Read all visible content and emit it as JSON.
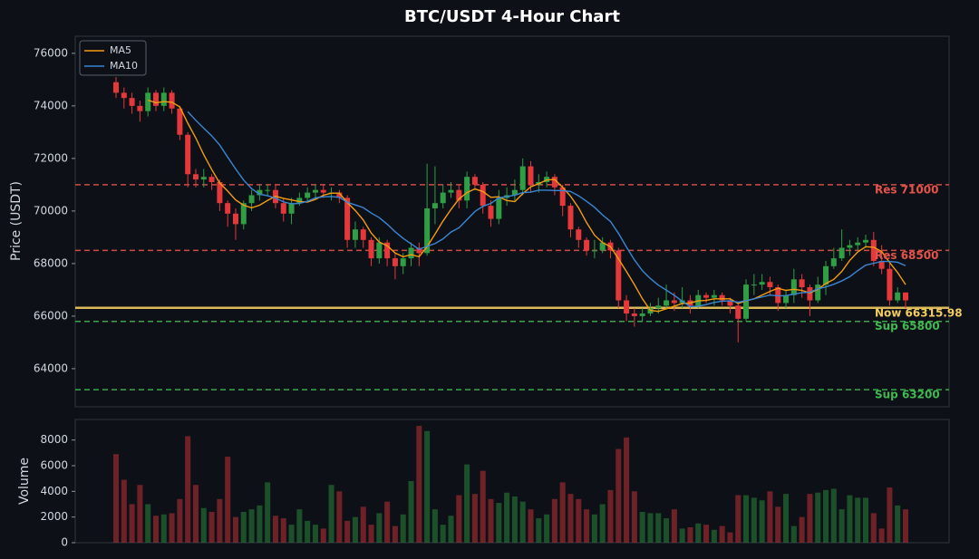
{
  "chart_data": {
    "type": "candlestick",
    "title": "BTC/USDT 4-Hour Chart",
    "ylabel": "Price (USDT)",
    "categories": [
      null,
      null,
      null,
      null,
      null,
      null,
      null,
      null,
      null,
      null,
      null,
      null,
      null,
      null,
      null,
      null,
      null,
      null,
      null,
      null,
      null,
      null,
      null,
      null,
      null,
      null,
      null,
      null,
      null,
      null,
      null,
      null,
      null,
      null,
      null,
      null,
      null,
      null,
      null,
      null,
      null,
      null,
      null,
      null,
      null,
      null,
      null,
      null,
      null,
      null,
      null,
      null,
      null,
      null,
      null,
      null,
      null,
      null,
      null,
      null,
      null,
      null,
      null,
      null,
      null,
      null,
      null,
      null,
      null,
      null,
      null,
      null,
      null,
      null,
      null,
      null,
      null,
      null,
      null,
      null,
      null,
      null,
      null,
      null,
      null,
      null,
      null,
      null,
      null,
      null,
      null,
      null,
      null,
      null,
      null,
      null,
      null,
      null,
      null,
      null
    ],
    "open": [
      74900,
      74500,
      74300,
      74000,
      73800,
      74500,
      74000,
      74500,
      73900,
      72900,
      71400,
      71200,
      71300,
      71100,
      70300,
      69900,
      69500,
      70300,
      70600,
      70800,
      70800,
      70300,
      69900,
      70300,
      70500,
      70700,
      70800,
      70700,
      70700,
      70500,
      68900,
      69300,
      68900,
      68200,
      68800,
      68200,
      67900,
      68200,
      68600,
      68400,
      70100,
      70300,
      70700,
      70800,
      70400,
      71300,
      71000,
      70200,
      69700,
      70500,
      70600,
      70800,
      71700,
      71000,
      71100,
      71300,
      70900,
      70200,
      69300,
      68900,
      68500,
      68500,
      68800,
      68500,
      66600,
      66100,
      66000,
      66100,
      66300,
      66400,
      66600,
      66500,
      66600,
      66400,
      66800,
      66700,
      66800,
      66600,
      66400,
      65900,
      67200,
      67200,
      67300,
      67100,
      66500,
      66800,
      67400,
      67100,
      66600,
      67200,
      67900,
      68200,
      68600,
      68700,
      68800,
      68900,
      68100,
      67800,
      66600,
      66900
    ],
    "high": [
      75100,
      74700,
      74500,
      74200,
      74700,
      74600,
      74700,
      74600,
      74000,
      73000,
      71600,
      71600,
      71400,
      71200,
      70400,
      70100,
      70400,
      70800,
      71000,
      71000,
      71000,
      70500,
      70500,
      70700,
      70900,
      71000,
      71000,
      70900,
      70800,
      70600,
      69600,
      69400,
      69000,
      69000,
      68900,
      68400,
      68400,
      68800,
      68800,
      71800,
      71700,
      71000,
      71100,
      71000,
      71500,
      71400,
      71100,
      70400,
      70800,
      70900,
      71200,
      72000,
      71900,
      71400,
      71500,
      71400,
      71000,
      70300,
      69400,
      69000,
      68900,
      69000,
      68900,
      68600,
      66800,
      66300,
      66300,
      66500,
      66700,
      67200,
      66900,
      67100,
      66800,
      67000,
      66900,
      67000,
      66900,
      66700,
      66500,
      67400,
      67600,
      67600,
      67500,
      67200,
      67000,
      67800,
      67600,
      67200,
      67500,
      68100,
      68600,
      69300,
      68900,
      69000,
      69100,
      69200,
      68700,
      68000,
      67100,
      66900
    ],
    "low": [
      74300,
      73900,
      73700,
      73400,
      73600,
      73800,
      73800,
      73700,
      72700,
      70900,
      70900,
      70900,
      70800,
      70000,
      69400,
      68900,
      69300,
      70000,
      70400,
      70600,
      70100,
      69600,
      69500,
      70200,
      70400,
      70500,
      70500,
      70400,
      70300,
      68600,
      68600,
      68600,
      67900,
      68000,
      67900,
      67400,
      67600,
      67900,
      67900,
      68300,
      69500,
      70100,
      70500,
      70100,
      70100,
      70800,
      69900,
      69400,
      69500,
      70200,
      70400,
      70600,
      70700,
      70700,
      70900,
      70600,
      69800,
      69000,
      68600,
      68300,
      68200,
      68400,
      68200,
      66300,
      65800,
      65600,
      65800,
      66000,
      66100,
      66300,
      66200,
      66300,
      66100,
      66300,
      66500,
      66400,
      66400,
      66100,
      65000,
      65800,
      66800,
      67000,
      66800,
      66200,
      66300,
      66500,
      66700,
      66000,
      66500,
      66800,
      67800,
      68100,
      68300,
      68500,
      68600,
      67900,
      67600,
      66400,
      66500,
      66300
    ],
    "close": [
      74500,
      74300,
      74000,
      73800,
      74500,
      74000,
      74500,
      73900,
      72900,
      71400,
      71200,
      71300,
      71100,
      70300,
      69900,
      69500,
      70300,
      70600,
      70800,
      70800,
      70300,
      69900,
      70300,
      70500,
      70700,
      70800,
      70700,
      70700,
      70500,
      68900,
      69300,
      68900,
      68200,
      68800,
      68200,
      67900,
      68200,
      68600,
      68400,
      70100,
      70300,
      70700,
      70800,
      70400,
      71300,
      71000,
      70200,
      69700,
      70500,
      70600,
      70800,
      71700,
      71000,
      71100,
      71300,
      70900,
      70200,
      69300,
      68900,
      68500,
      68500,
      68800,
      68500,
      66600,
      66100,
      66000,
      66100,
      66300,
      66400,
      66600,
      66500,
      66600,
      66400,
      66800,
      66700,
      66800,
      66600,
      66400,
      65900,
      67200,
      67200,
      67300,
      67100,
      66500,
      66800,
      67400,
      67100,
      66600,
      67200,
      67900,
      68200,
      68600,
      68700,
      68800,
      68900,
      68100,
      67800,
      66600,
      66900,
      66600
    ],
    "up_color": "#2f9e44",
    "down_color": "#e5383b",
    "ylim": [
      62550,
      76650
    ],
    "yticks": [
      64000,
      66000,
      68000,
      70000,
      72000,
      74000,
      76000
    ],
    "legend": "upper left",
    "series": [
      {
        "name": "MA5",
        "color": "#f39c12",
        "values": [
          null,
          null,
          null,
          null,
          74220,
          74120,
          74160,
          74140,
          73960,
          73340,
          72780,
          72140,
          71580,
          71060,
          70760,
          70420,
          70220,
          70120,
          70220,
          70400,
          70560,
          70480,
          70420,
          70360,
          70340,
          70440,
          70600,
          70680,
          70680,
          70320,
          70020,
          69660,
          69160,
          68820,
          68680,
          68400,
          68260,
          68340,
          68260,
          68640,
          69120,
          69620,
          70060,
          70460,
          70700,
          70840,
          70740,
          70520,
          70540,
          70400,
          70360,
          70660,
          70920,
          71040,
          71180,
          71200,
          70900,
          70560,
          70120,
          69560,
          69080,
          68800,
          68640,
          68180,
          67700,
          67200,
          66660,
          66220,
          66180,
          66280,
          66380,
          66480,
          66500,
          66580,
          66600,
          66660,
          66660,
          66660,
          66480,
          66580,
          66660,
          66800,
          66940,
          67060,
          66980,
          67020,
          66980,
          66880,
          67020,
          67240,
          67400,
          67700,
          68120,
          68440,
          68640,
          68620,
          68460,
          68040,
          67660,
          67200
        ]
      },
      {
        "name": "MA10",
        "color": "#3a86d4",
        "values": [
          null,
          null,
          null,
          null,
          null,
          null,
          null,
          null,
          null,
          73780,
          73450,
          73150,
          72860,
          72510,
          72050,
          71600,
          71180,
          70850,
          70640,
          70580,
          70490,
          70350,
          70270,
          70290,
          70370,
          70500,
          70540,
          70550,
          70520,
          70330,
          70230,
          70130,
          69920,
          69750,
          69500,
          69210,
          68960,
          68750,
          68540,
          68660,
          68760,
          68940,
          69200,
          69360,
          69670,
          69980,
          70180,
          70290,
          70500,
          70550,
          70600,
          70700,
          70720,
          70790,
          70790,
          70780,
          70780,
          70740,
          70580,
          70370,
          70140,
          69850,
          69600,
          69150,
          68630,
          68140,
          67730,
          67430,
          67180,
          66990,
          66790,
          66570,
          66360,
          66380,
          66440,
          66520,
          66570,
          66580,
          66530,
          66590,
          66660,
          66730,
          66800,
          66770,
          66780,
          66840,
          66890,
          66910,
          67040,
          67110,
          67210,
          67340,
          67500,
          67730,
          67940,
          68010,
          68080,
          68080,
          68050,
          67920
        ]
      }
    ],
    "levels": [
      {
        "label": "Res 71000",
        "value": 71000,
        "color": "#e5534b",
        "style": "dashed"
      },
      {
        "label": "Res 68500",
        "value": 68500,
        "color": "#e5534b",
        "style": "dashed"
      },
      {
        "label": "Now 66315.98",
        "value": 66315.98,
        "color": "#f2cc60",
        "style": "solid"
      },
      {
        "label": "Sup 65800",
        "value": 65800,
        "color": "#3fb950",
        "style": "dashed"
      },
      {
        "label": "Sup 63200",
        "value": 63200,
        "color": "#3fb950",
        "style": "dashed"
      }
    ],
    "volume": {
      "ylabel": "Volume",
      "ylim": [
        0,
        9600
      ],
      "yticks": [
        0,
        2000,
        4000,
        6000,
        8000
      ],
      "values": [
        6900,
        4900,
        3000,
        4500,
        3000,
        2100,
        2200,
        2300,
        3400,
        8300,
        4500,
        2700,
        2400,
        3400,
        6700,
        2000,
        2400,
        2600,
        2900,
        4700,
        2100,
        1900,
        1400,
        2600,
        1700,
        1400,
        1100,
        4500,
        4000,
        1700,
        2000,
        2800,
        1400,
        2300,
        3200,
        1300,
        2200,
        4800,
        9100,
        8700,
        2600,
        1400,
        2100,
        3700,
        6100,
        3800,
        5600,
        3400,
        3100,
        3900,
        3600,
        3200,
        2600,
        1900,
        2200,
        3400,
        4700,
        3800,
        3400,
        2600,
        2200,
        3000,
        4100,
        7300,
        8200,
        4000,
        2400,
        2300,
        2300,
        1900,
        2600,
        1100,
        1200,
        1500,
        1400,
        1000,
        1300,
        800,
        3700,
        3700,
        3500,
        3300,
        4000,
        2800,
        3800,
        1300,
        2000,
        3800,
        3900,
        4100,
        4200,
        2600,
        3700,
        3500,
        3500,
        2300,
        1100,
        4300,
        2900,
        2600
      ]
    }
  }
}
